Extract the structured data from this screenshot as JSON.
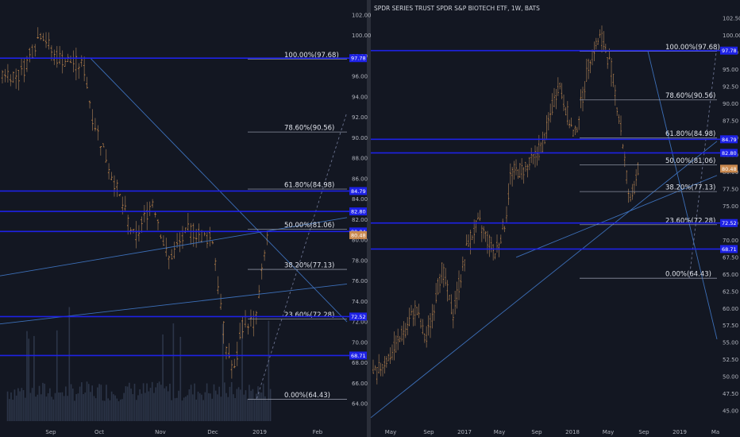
{
  "chart_data": [
    {
      "type": "candlestick",
      "pane": "left",
      "title": "",
      "ylim": [
        62.3,
        103
      ],
      "y_ticks": [
        64,
        66,
        68,
        70,
        72,
        74,
        76,
        78,
        80,
        82,
        84,
        86,
        88,
        90,
        92,
        94,
        96,
        98,
        100,
        102
      ],
      "x_labels": [
        "Sep",
        "Oct",
        "Nov",
        "Dec",
        "2019",
        "Feb"
      ],
      "fib_levels": [
        {
          "label": "100.00%(97.68)",
          "value": 97.68
        },
        {
          "label": "78.60%(90.56)",
          "value": 90.56
        },
        {
          "label": "61.80%(84.98)",
          "value": 84.98
        },
        {
          "label": "50.00%(81.06)",
          "value": 81.06
        },
        {
          "label": "38.20%(77.13)",
          "value": 77.13
        },
        {
          "label": "23.60%(72.28)",
          "value": 72.28
        },
        {
          "label": "0.00%(64.43)",
          "value": 64.43
        }
      ],
      "horizontal_lines": [
        {
          "label": "97.78",
          "value": 97.78,
          "color": "#1e22e6"
        },
        {
          "label": "84.79",
          "value": 84.79,
          "color": "#1e22e6"
        },
        {
          "label": "82.80",
          "value": 82.8,
          "color": "#1e22e6"
        },
        {
          "label": "80.84",
          "value": 80.84,
          "color": "#1e22e6"
        },
        {
          "label": "72.52",
          "value": 72.52,
          "color": "#1e22e6"
        },
        {
          "label": "68.71",
          "value": 68.71,
          "color": "#1e22e6"
        }
      ],
      "last_price": {
        "label": "80.48",
        "value": 80.48,
        "color": "#c9894f"
      },
      "series_shape": [
        [
          0,
          96.5
        ],
        [
          0.06,
          96
        ],
        [
          0.13,
          100.5
        ],
        [
          0.17,
          98
        ],
        [
          0.27,
          97
        ],
        [
          0.3,
          92
        ],
        [
          0.38,
          85
        ],
        [
          0.44,
          80
        ],
        [
          0.5,
          84
        ],
        [
          0.55,
          78
        ],
        [
          0.62,
          81
        ],
        [
          0.7,
          80
        ],
        [
          0.74,
          70
        ],
        [
          0.77,
          67
        ],
        [
          0.8,
          72
        ],
        [
          0.84,
          72
        ],
        [
          0.88,
          80.5
        ]
      ],
      "trendlines": [
        {
          "from": [
            0.26,
            97.8
          ],
          "to": [
            1.0,
            72
          ]
        },
        {
          "from": [
            0.0,
            76.5
          ],
          "to": [
            1.0,
            82.2
          ]
        },
        {
          "from": [
            0.0,
            71.8
          ],
          "to": [
            1.0,
            75.7
          ]
        },
        {
          "from": [
            0.74,
            64.5
          ],
          "to": [
            1.0,
            92.5
          ],
          "dashed": true
        }
      ],
      "volume": {
        "start_fraction": 0.02,
        "level": 0.35
      }
    },
    {
      "type": "candlestick",
      "pane": "right",
      "title": "SPDR SERIES TRUST SPDR S&P BIOTECH ETF, 1W, BATS",
      "ylim": [
        43.5,
        104.5
      ],
      "y_ticks": [
        45,
        47.5,
        50,
        52.5,
        55,
        57.5,
        60,
        62.5,
        65,
        67.5,
        70,
        72.5,
        75,
        77.5,
        80,
        82.5,
        85,
        87.5,
        90,
        92.5,
        95,
        97.5,
        100,
        102.5
      ],
      "x_labels": [
        "May",
        "Sep",
        "2017",
        "May",
        "Sep",
        "2018",
        "May",
        "Sep",
        "2019",
        "Ma"
      ],
      "fib_levels": [
        {
          "label": "100.00%(97.68)",
          "value": 97.68
        },
        {
          "label": "78.60%(90.56)",
          "value": 90.56
        },
        {
          "label": "61.80%(84.98)",
          "value": 84.98
        },
        {
          "label": "50.00%(81.06)",
          "value": 81.06
        },
        {
          "label": "38.20%(77.13)",
          "value": 77.13
        },
        {
          "label": "23.60%(72.28)",
          "value": 72.28
        },
        {
          "label": "0.00%(64.43)",
          "value": 64.43
        }
      ],
      "horizontal_lines": [
        {
          "label": "97.78",
          "value": 97.78,
          "color": "#1e22e6"
        },
        {
          "label": "84.79",
          "value": 84.79,
          "color": "#1e22e6"
        },
        {
          "label": "82.80",
          "value": 82.8,
          "color": "#1e22e6"
        },
        {
          "label": "72.52",
          "value": 72.52,
          "color": "#1e22e6"
        },
        {
          "label": "68.71",
          "value": 68.71,
          "color": "#1e22e6"
        }
      ],
      "last_price": {
        "label": "80.48",
        "value": 80.48,
        "color": "#c9894f"
      },
      "series_shape": [
        [
          0,
          50
        ],
        [
          0.08,
          54
        ],
        [
          0.16,
          60
        ],
        [
          0.2,
          55
        ],
        [
          0.26,
          66
        ],
        [
          0.3,
          59
        ],
        [
          0.36,
          70
        ],
        [
          0.4,
          72.5
        ],
        [
          0.46,
          68
        ],
        [
          0.5,
          73
        ],
        [
          0.52,
          80
        ],
        [
          0.58,
          80.5
        ],
        [
          0.64,
          84
        ],
        [
          0.7,
          93
        ],
        [
          0.76,
          85
        ],
        [
          0.82,
          97
        ],
        [
          0.86,
          100
        ],
        [
          0.9,
          95
        ],
        [
          0.94,
          85
        ],
        [
          0.97,
          75
        ],
        [
          1.0,
          80.5
        ]
      ],
      "trendlines": [
        {
          "from": [
            0.0,
            44
          ],
          "to": [
            1.0,
            84.5
          ]
        },
        {
          "from": [
            0.42,
            67.5
          ],
          "to": [
            1.0,
            79.5
          ]
        },
        {
          "from": [
            0.8,
            97.8
          ],
          "to": [
            1.0,
            55.5
          ]
        },
        {
          "from": [
            0.92,
            64.43
          ],
          "to": [
            1.0,
            98.5
          ],
          "dashed": true
        }
      ]
    }
  ]
}
